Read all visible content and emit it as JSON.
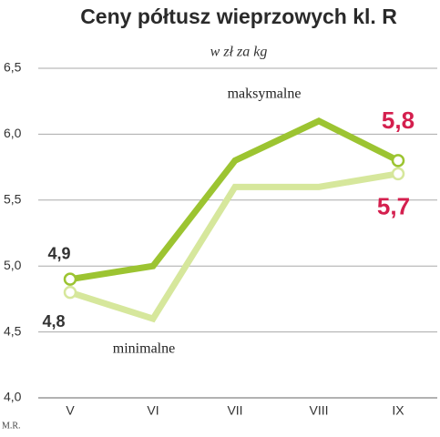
{
  "chart_data": {
    "type": "line",
    "title": "Ceny półtusz wieprzowych kl. R",
    "subtitle": "w zł za kg",
    "source": "M.R.",
    "categories": [
      "V",
      "VI",
      "VII",
      "VIII",
      "IX"
    ],
    "series": [
      {
        "name": "maksymalne",
        "color": "#9cc431",
        "values": [
          4.9,
          5.0,
          5.8,
          6.1,
          5.8
        ],
        "value_labels": [
          "4,9",
          null,
          null,
          null,
          "5,8"
        ]
      },
      {
        "name": "minimalne",
        "color": "#d6e79c",
        "values": [
          4.8,
          4.6,
          5.6,
          5.6,
          5.7
        ],
        "value_labels": [
          "4,8",
          null,
          null,
          null,
          "5,7"
        ]
      }
    ],
    "ylim": [
      4.0,
      6.5
    ],
    "yticks": [
      {
        "value": 4.0,
        "label": "4,0"
      },
      {
        "value": 4.5,
        "label": "4,5"
      },
      {
        "value": 5.0,
        "label": "5,0"
      },
      {
        "value": 5.5,
        "label": "5,5"
      },
      {
        "value": 6.0,
        "label": "6,0"
      },
      {
        "value": 6.5,
        "label": "6,5"
      }
    ],
    "grid": true
  }
}
